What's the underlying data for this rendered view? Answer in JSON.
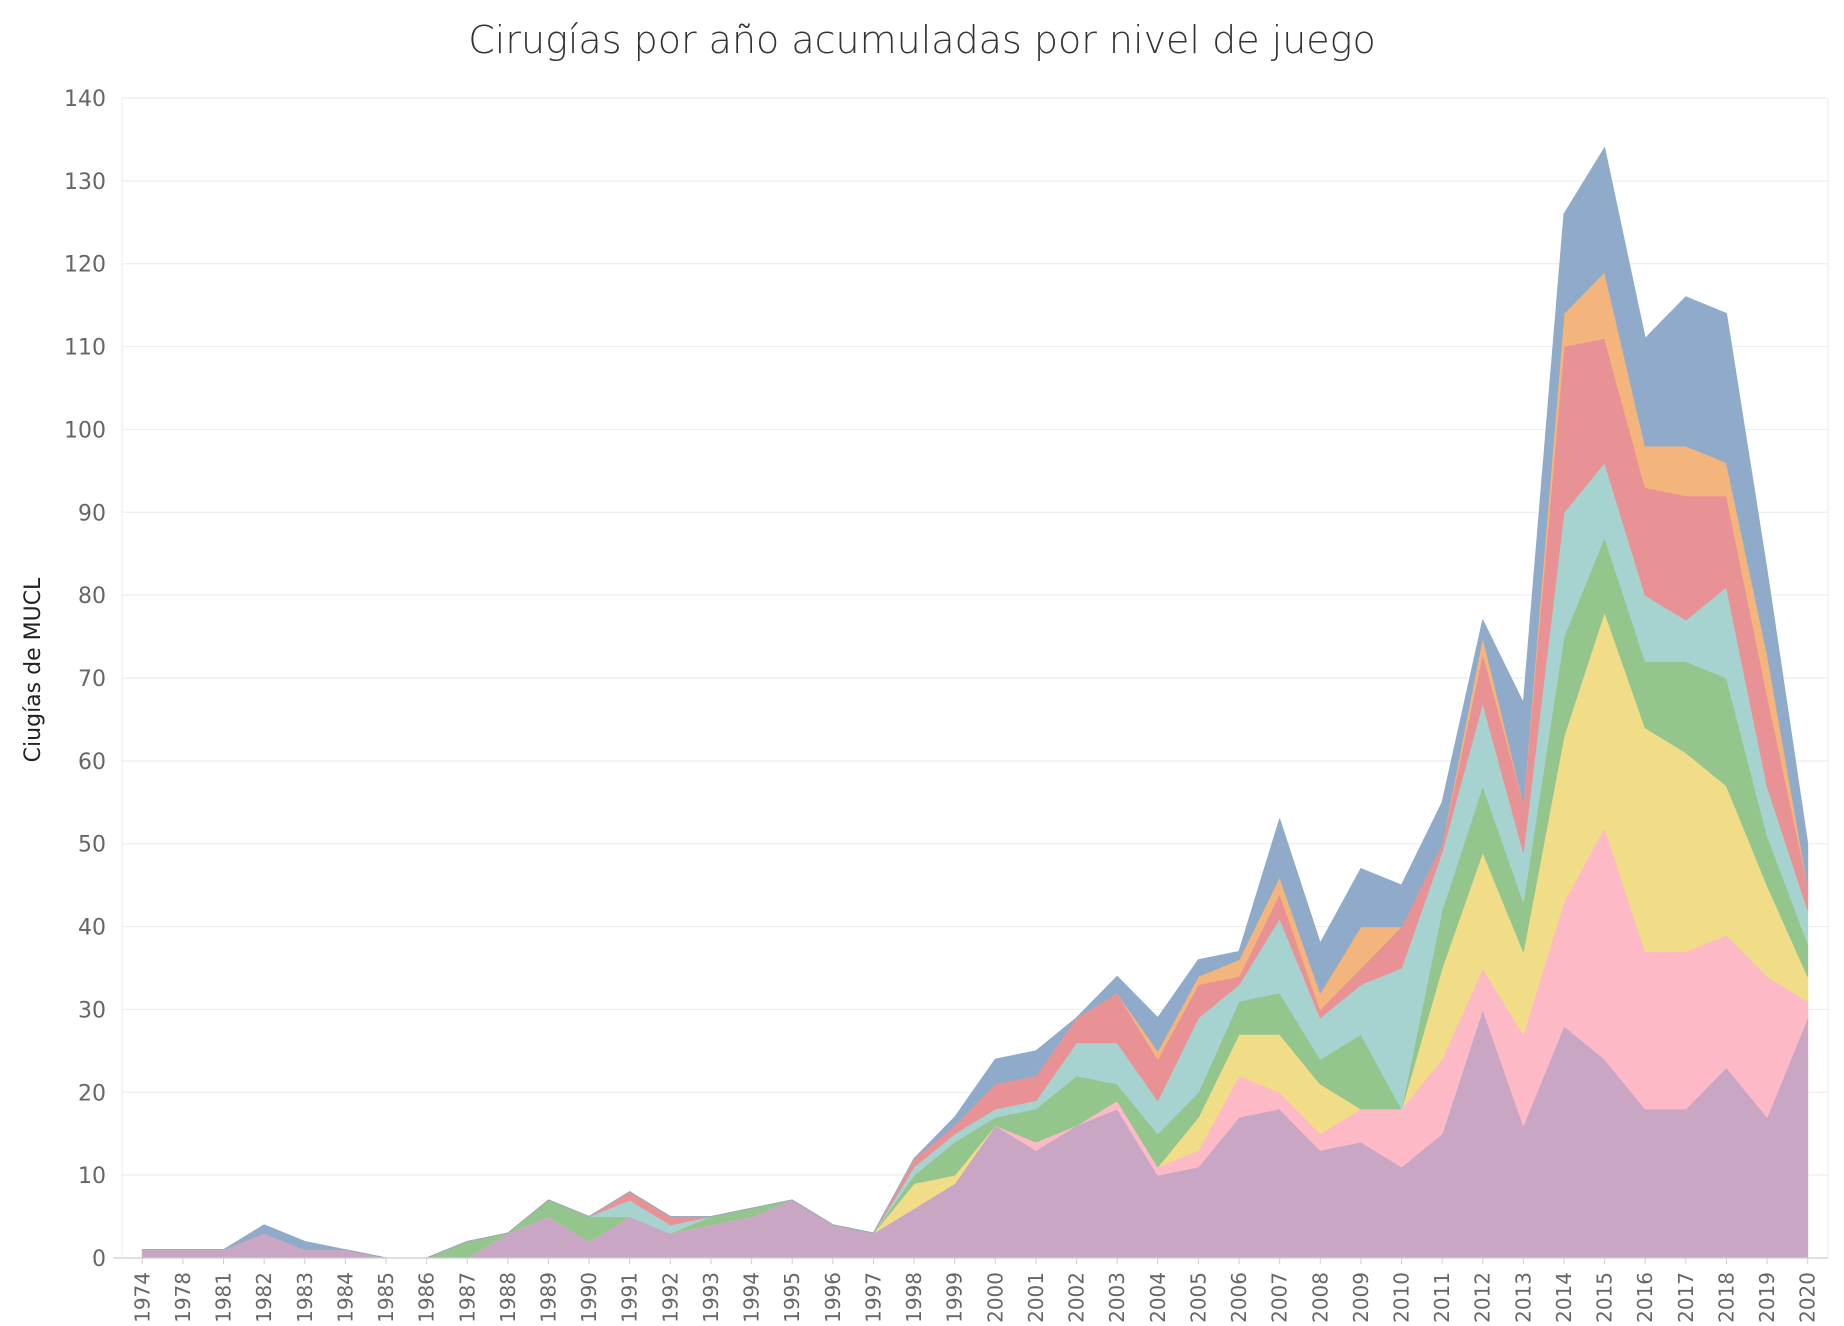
{
  "chart_data": {
    "type": "area",
    "stacked": true,
    "title": "Cirugías por año acumuladas por nivel de juego",
    "xlabel": "",
    "ylabel": "Ciugías de MUCL",
    "ylim": [
      0,
      140
    ],
    "yticks": [
      0,
      10,
      20,
      30,
      40,
      50,
      60,
      70,
      80,
      90,
      100,
      110,
      120,
      130,
      140
    ],
    "grid": true,
    "legend": "none",
    "categories": [
      "1974",
      "1978",
      "1981",
      "1982",
      "1983",
      "1984",
      "1985",
      "1986",
      "1987",
      "1988",
      "1989",
      "1990",
      "1991",
      "1992",
      "1993",
      "1994",
      "1995",
      "1996",
      "1997",
      "1998",
      "1999",
      "2000",
      "2001",
      "2002",
      "2003",
      "2004",
      "2005",
      "2006",
      "2007",
      "2008",
      "2009",
      "2010",
      "2011",
      "2012",
      "2013",
      "2014",
      "2015",
      "2016",
      "2017",
      "2018",
      "2019",
      "2020"
    ],
    "series": [
      {
        "color": "#c9a6c4",
        "values": [
          1,
          1,
          1,
          3,
          1,
          1,
          0,
          0,
          0,
          3,
          5,
          2,
          5,
          3,
          4,
          5,
          7,
          4,
          3,
          6,
          9,
          16,
          13,
          16,
          18,
          10,
          11,
          17,
          18,
          13,
          14,
          11,
          15,
          30,
          16,
          28,
          24,
          18,
          18,
          23,
          17,
          29
        ]
      },
      {
        "color": "#fdbac6",
        "values": [
          0,
          0,
          0,
          0,
          0,
          0,
          0,
          0,
          0,
          0,
          0,
          0,
          0,
          0,
          0,
          0,
          0,
          0,
          0,
          0,
          0,
          0,
          1,
          0,
          1,
          1,
          2,
          5,
          2,
          2,
          4,
          7,
          9,
          5,
          11,
          15,
          28,
          19,
          19,
          16,
          17,
          2
        ]
      },
      {
        "color": "#f1dc87",
        "values": [
          0,
          0,
          0,
          0,
          0,
          0,
          0,
          0,
          0,
          0,
          0,
          0,
          0,
          0,
          0,
          0,
          0,
          0,
          0,
          3,
          1,
          0,
          0,
          0,
          0,
          0,
          4,
          5,
          7,
          6,
          0,
          0,
          11,
          14,
          10,
          20,
          26,
          27,
          24,
          18,
          11,
          3
        ]
      },
      {
        "color": "#94c58d",
        "values": [
          0,
          0,
          0,
          0,
          0,
          0,
          0,
          0,
          2,
          0,
          2,
          3,
          0,
          0,
          1,
          1,
          0,
          0,
          0,
          1,
          4,
          1,
          4,
          6,
          2,
          4,
          3,
          4,
          5,
          3,
          9,
          0,
          7,
          8,
          6,
          12,
          9,
          8,
          11,
          13,
          6,
          4
        ]
      },
      {
        "color": "#a6d3cf",
        "values": [
          0,
          0,
          0,
          0,
          0,
          0,
          0,
          0,
          0,
          0,
          0,
          0,
          2,
          1,
          0,
          0,
          0,
          0,
          0,
          1,
          1,
          1,
          1,
          4,
          5,
          4,
          9,
          2,
          9,
          5,
          6,
          17,
          7,
          10,
          6,
          15,
          9,
          8,
          5,
          11,
          6,
          4
        ]
      },
      {
        "color": "#e99295",
        "values": [
          0,
          0,
          0,
          0,
          0,
          0,
          0,
          0,
          0,
          0,
          0,
          0,
          1,
          1,
          0,
          0,
          0,
          0,
          0,
          1,
          1,
          3,
          3,
          3,
          6,
          5,
          4,
          1,
          3,
          1,
          2,
          5,
          1,
          6,
          6,
          20,
          15,
          13,
          15,
          11,
          11,
          3
        ]
      },
      {
        "color": "#f4b57d",
        "values": [
          0,
          0,
          0,
          0,
          0,
          0,
          0,
          0,
          0,
          0,
          0,
          0,
          0,
          0,
          0,
          0,
          0,
          0,
          0,
          0,
          0,
          0,
          0,
          0,
          0,
          1,
          1,
          2,
          2,
          2,
          5,
          0,
          0,
          2,
          0,
          4,
          8,
          5,
          6,
          4,
          5,
          0
        ]
      },
      {
        "color": "#8fabc9",
        "values": [
          0,
          0,
          0,
          1,
          1,
          0,
          0,
          0,
          0,
          0,
          0,
          0,
          0,
          0,
          0,
          0,
          0,
          0,
          0,
          0,
          1,
          3,
          3,
          0,
          2,
          4,
          2,
          1,
          7,
          6,
          7,
          5,
          5,
          2,
          12,
          12,
          15,
          13,
          18,
          18,
          10,
          5
        ]
      }
    ]
  }
}
